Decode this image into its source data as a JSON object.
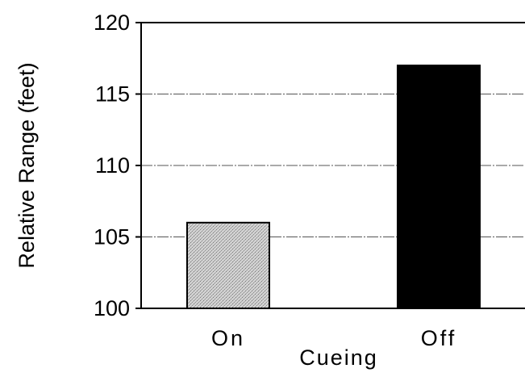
{
  "chart_data": {
    "type": "bar",
    "title": "",
    "xlabel": "Cueing",
    "ylabel": "Relative Range (feet)",
    "categories": [
      "On",
      "Off"
    ],
    "values": [
      106,
      117
    ],
    "ylim": [
      100,
      120
    ],
    "yticks": [
      "100",
      "105",
      "110",
      "115",
      "120"
    ],
    "grid": true,
    "colors": {
      "On": "#c4c4c4",
      "Off": "#000000",
      "gridline": "#555555"
    }
  }
}
